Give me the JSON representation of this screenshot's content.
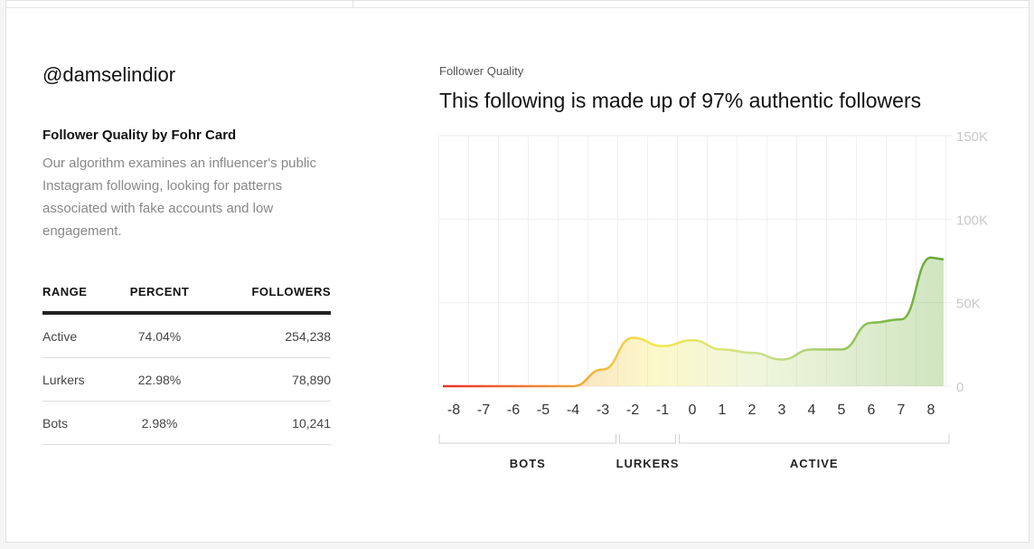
{
  "profile": {
    "handle": "@damselindior",
    "section_title": "Follower Quality by Fohr Card",
    "description": "Our algorithm examines an influencer's public Instagram following, looking for patterns associated with fake accounts and low engagement."
  },
  "table": {
    "headers": [
      "RANGE",
      "PERCENT",
      "FOLLOWERS"
    ],
    "rows": [
      {
        "range": "Active",
        "percent": "74.04%",
        "followers": "254,238"
      },
      {
        "range": "Lurkers",
        "percent": "22.98%",
        "followers": "78,890"
      },
      {
        "range": "Bots",
        "percent": "2.98%",
        "followers": "10,241"
      }
    ]
  },
  "chart": {
    "subtitle": "Follower Quality",
    "title": "This following is made up of 97% authentic followers"
  },
  "chart_data": {
    "type": "area",
    "x": [
      -8,
      -7,
      -6,
      -5,
      -4,
      -3,
      -2,
      -1,
      0,
      1,
      2,
      3,
      4,
      5,
      6,
      7,
      8
    ],
    "x_tick_labels": [
      "-8",
      "-7",
      "-6",
      "-5",
      "-4",
      "-3",
      "-2",
      "-1",
      "0",
      "1",
      "2",
      "3",
      "4",
      "5",
      "6",
      "7",
      "8"
    ],
    "y": [
      0,
      0,
      0,
      0,
      0,
      10000,
      29000,
      24000,
      27500,
      22000,
      20000,
      16000,
      22000,
      22000,
      38000,
      40000,
      77000
    ],
    "ylim": [
      0,
      150000
    ],
    "y_tick_values": [
      0,
      50000,
      100000,
      150000
    ],
    "y_tick_labels": [
      "0",
      "50K",
      "100K",
      "150K"
    ],
    "y_axis_position": "right",
    "grid": true,
    "gradient_colors": [
      "#e8312b",
      "#f2b43a",
      "#f3e84a",
      "#cde28c",
      "#62a82f"
    ],
    "groups": [
      {
        "label": "BOTS",
        "from": -8,
        "to": -3
      },
      {
        "label": "LURKERS",
        "from": -2,
        "to": -1
      },
      {
        "label": "ACTIVE",
        "from": 0,
        "to": 8
      }
    ]
  }
}
